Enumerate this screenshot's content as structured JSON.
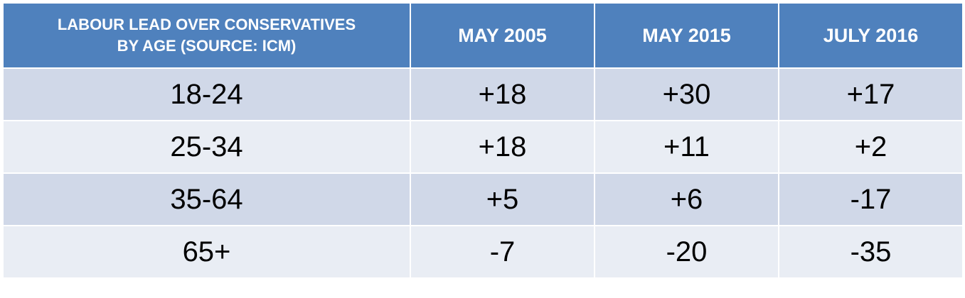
{
  "table": {
    "header": [
      [
        "LABOUR LEAD OVER CONSERVATIVES",
        "BY AGE (SOURCE: ICM)"
      ],
      [
        "MAY 2005"
      ],
      [
        "MAY 2015"
      ],
      [
        "JULY 2016"
      ]
    ],
    "rows": [
      [
        "18-24",
        "+18",
        "+30",
        "+17"
      ],
      [
        "25-34",
        "+18",
        "+11",
        "+2"
      ],
      [
        "35-64",
        "+5",
        "+6",
        "-17"
      ],
      [
        "65+",
        "-7",
        "-20",
        "-35"
      ]
    ]
  }
}
